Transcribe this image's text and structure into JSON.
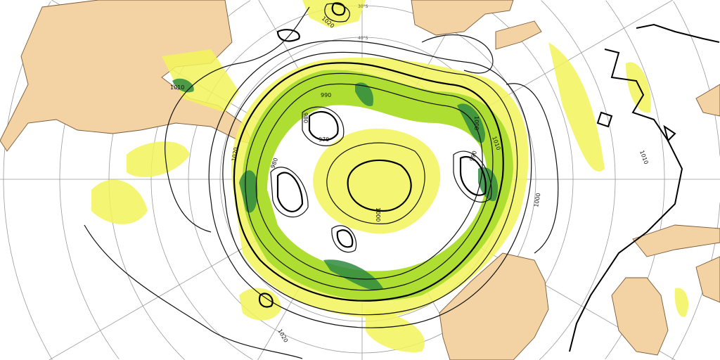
{
  "map": {
    "projection": "south-polar",
    "latitude_labels": [
      "30°S",
      "40°S"
    ],
    "isobar_labels": [
      "1020",
      "1010",
      "1000",
      "990",
      "980",
      "970",
      "1000",
      "1010",
      "990",
      "980",
      "1020",
      "1010",
      "1000",
      "1020"
    ],
    "colors": {
      "land": "#f3d3a3",
      "precip_light": "#f2f55a",
      "precip_medium": "#a6dc2a",
      "precip_heavy": "#2f8a40",
      "isobar": "#000000",
      "graticule": "#9a9a9a"
    }
  }
}
